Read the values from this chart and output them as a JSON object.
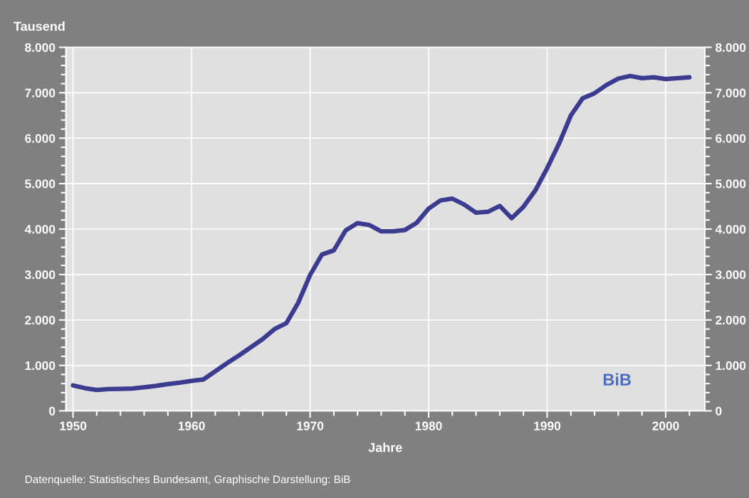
{
  "chart_data": {
    "type": "line",
    "ylabel": "Tausend",
    "xlabel": "Jahre",
    "annotations": [
      "BiB",
      "Datenquelle: Statistisches Bundesamt, Graphische Darstellung: BiB"
    ],
    "x": [
      1950,
      1951,
      1952,
      1953,
      1954,
      1955,
      1956,
      1957,
      1958,
      1959,
      1960,
      1961,
      1962,
      1963,
      1964,
      1965,
      1966,
      1967,
      1968,
      1969,
      1970,
      1971,
      1972,
      1973,
      1974,
      1975,
      1976,
      1977,
      1978,
      1979,
      1980,
      1981,
      1982,
      1983,
      1984,
      1985,
      1986,
      1987,
      1988,
      1989,
      1990,
      1991,
      1992,
      1993,
      1994,
      1995,
      1996,
      1997,
      1998,
      1999,
      2000,
      2001,
      2002
    ],
    "series": [
      {
        "color": "#3b3b8f",
        "values": [
          560,
          500,
          460,
          480,
          485,
          490,
          520,
          550,
          590,
          620,
          660,
          690,
          870,
          1050,
          1220,
          1400,
          1580,
          1800,
          1930,
          2380,
          2990,
          3440,
          3530,
          3970,
          4130,
          4090,
          3950,
          3950,
          3980,
          4140,
          4450,
          4630,
          4670,
          4540,
          4360,
          4380,
          4510,
          4240,
          4490,
          4850,
          5340,
          5880,
          6500,
          6880,
          6990,
          7170,
          7310,
          7370,
          7320,
          7340,
          7300,
          7320,
          7340
        ]
      }
    ],
    "xlim": [
      1949.4,
      2003.3
    ],
    "xticks": [
      1950,
      1960,
      1970,
      1980,
      1990,
      2000
    ],
    "ylim": [
      0,
      8000
    ],
    "yticks": [
      0,
      {
        "value": 1000,
        "label": "1.000"
      },
      {
        "value": 2000,
        "label": "2.000"
      },
      {
        "value": 3000,
        "label": "3.000"
      },
      {
        "value": 4000,
        "label": "4.000"
      },
      {
        "value": 5000,
        "label": "5.000"
      },
      {
        "value": 6000,
        "label": "6.000"
      },
      {
        "value": 7000,
        "label": "7.000"
      },
      {
        "value": 8000,
        "label": "8.000"
      }
    ],
    "y2lim": [
      0,
      8000
    ],
    "y2ticks": [
      0,
      {
        "value": 1000,
        "label": "1.000"
      },
      {
        "value": 2000,
        "label": "2.000"
      },
      {
        "value": 3000,
        "label": "3.000"
      },
      {
        "value": 4000,
        "label": "4.000"
      },
      {
        "value": 5000,
        "label": "5.000"
      },
      {
        "value": 6000,
        "label": "6.000"
      },
      {
        "value": 7000,
        "label": "7.000"
      },
      {
        "value": 8000,
        "label": "8.000"
      }
    ],
    "grid": true,
    "marker": "none",
    "line_style": "solid",
    "legend": false
  }
}
